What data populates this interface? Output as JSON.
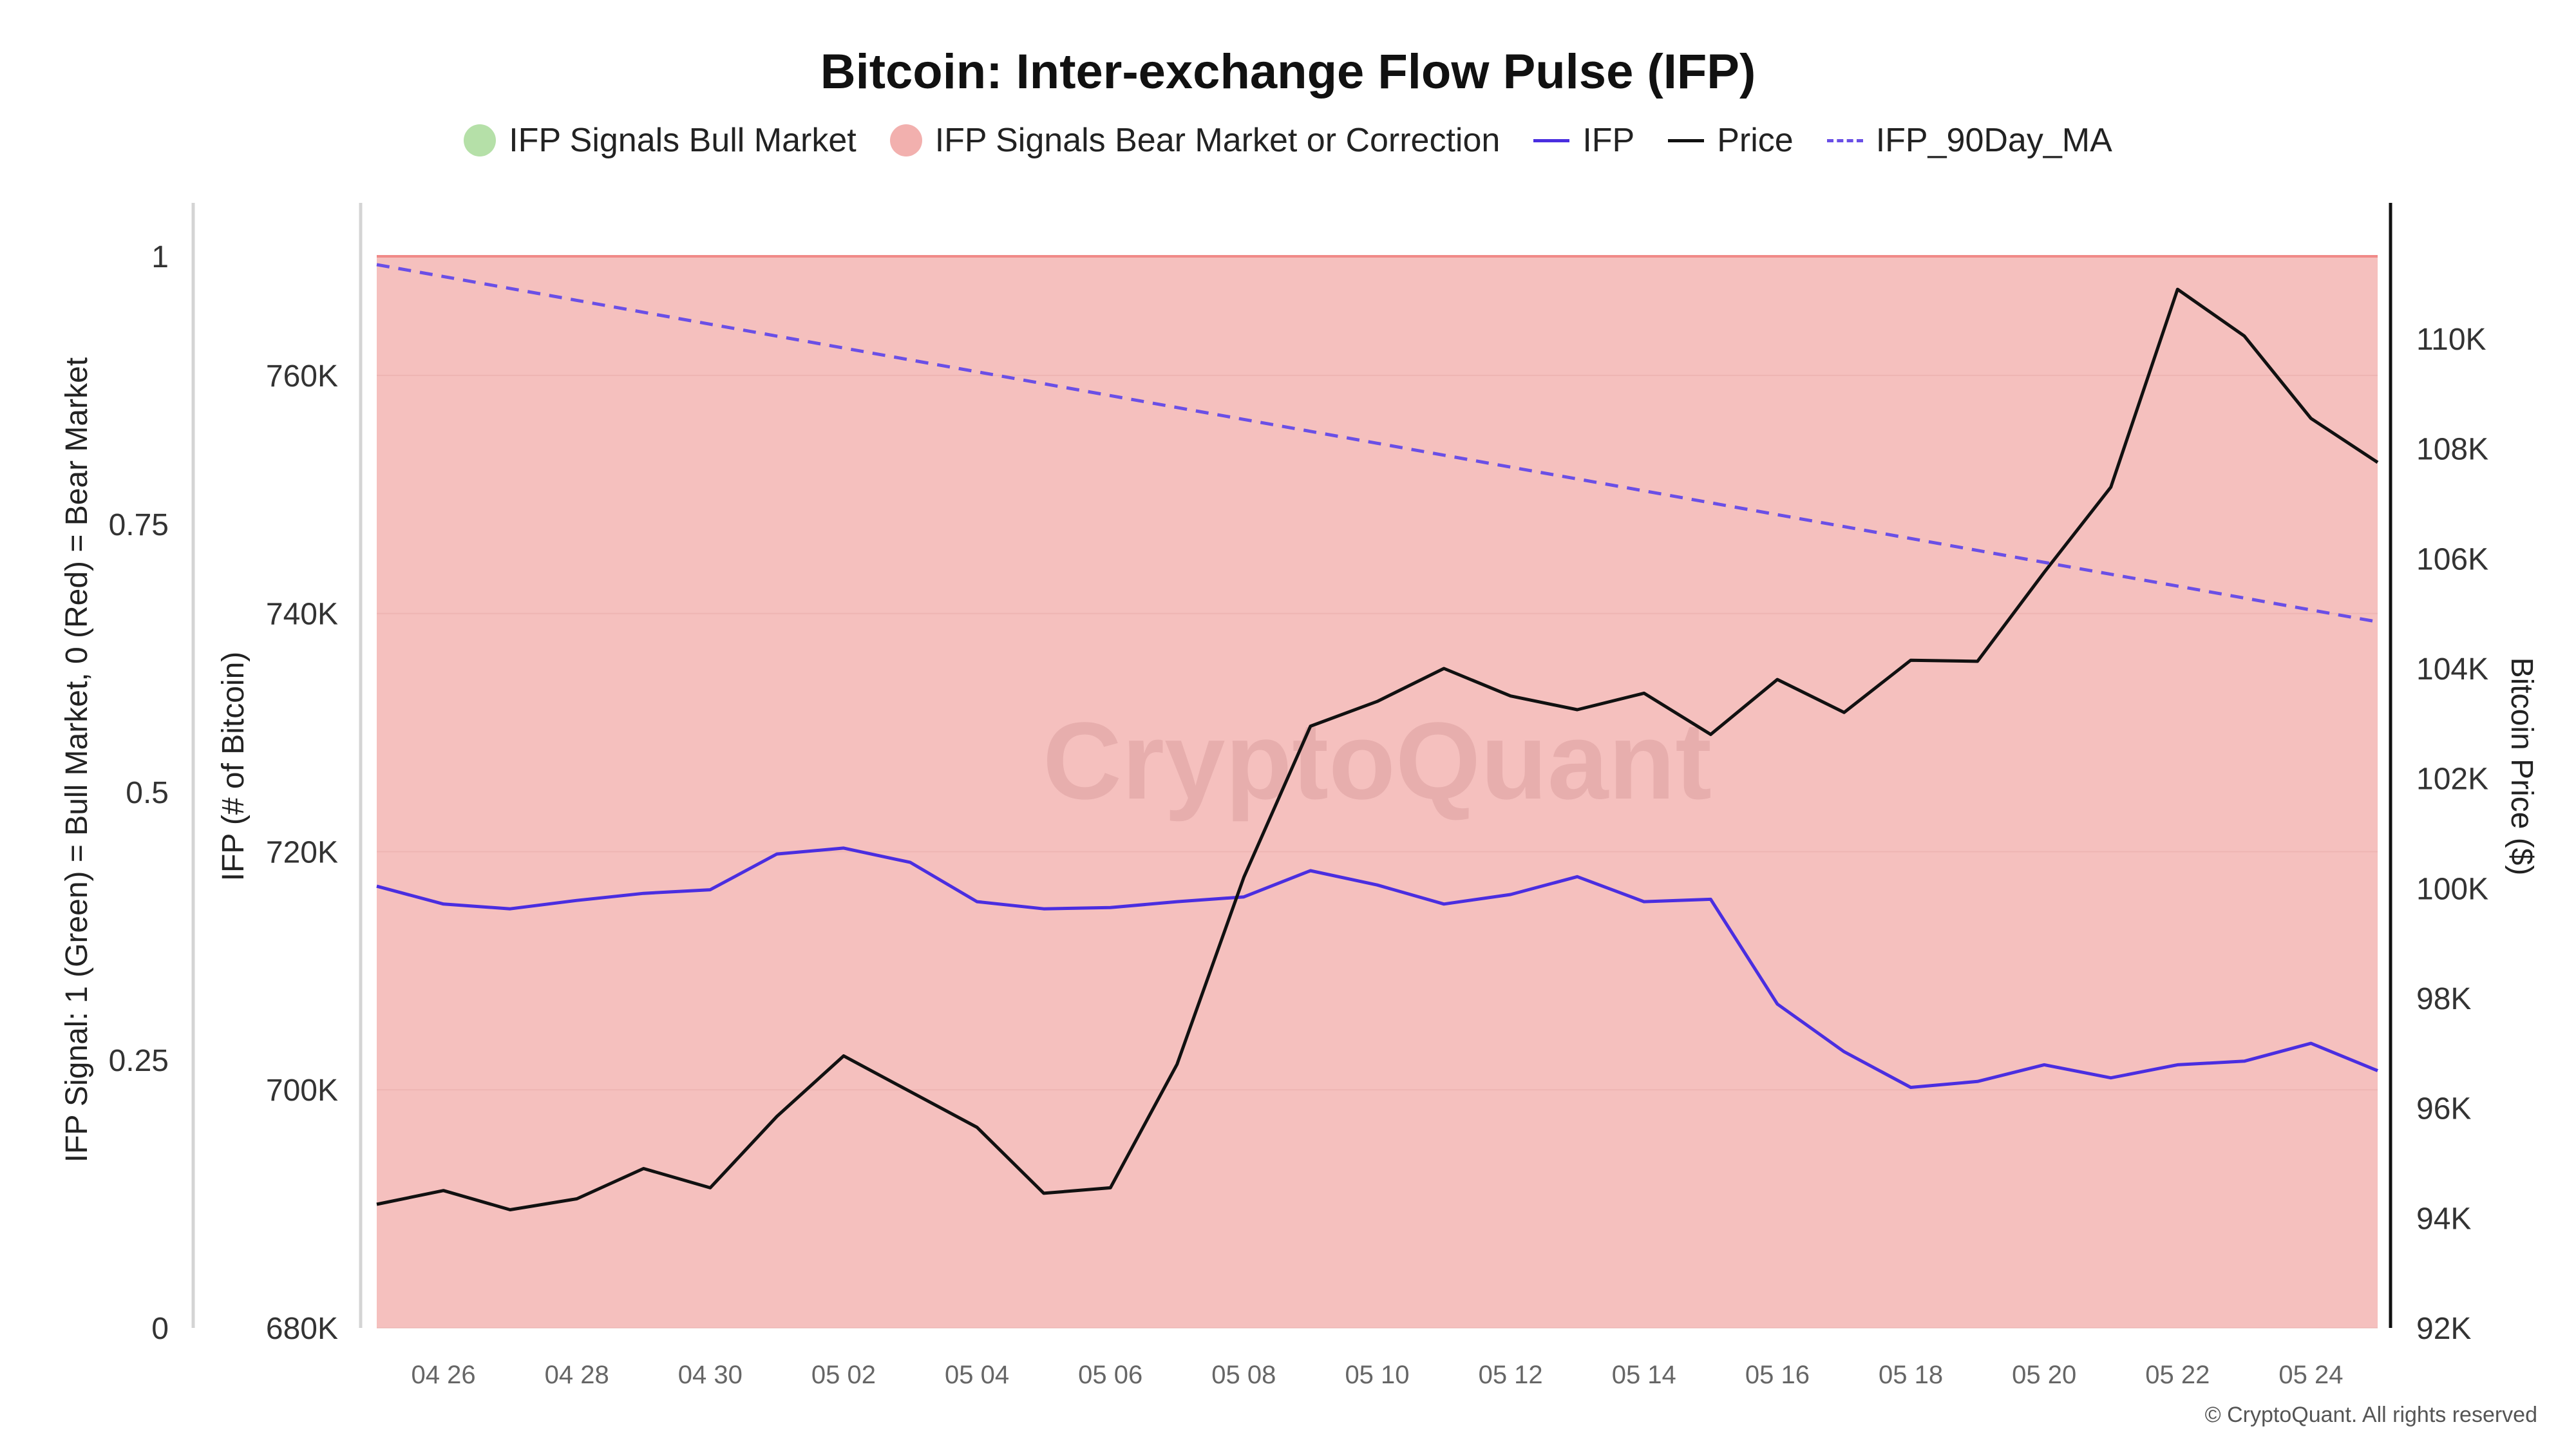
{
  "chart_data": {
    "type": "line",
    "title": "Bitcoin: Inter-exchange Flow Pulse (IFP)",
    "x": [
      "04 25",
      "04 26",
      "04 27",
      "04 28",
      "04 29",
      "04 30",
      "05 01",
      "05 02",
      "05 03",
      "05 04",
      "05 05",
      "05 06",
      "05 07",
      "05 08",
      "05 09",
      "05 10",
      "05 11",
      "05 12",
      "05 13",
      "05 14",
      "05 15",
      "05 16",
      "05 17",
      "05 18",
      "05 19",
      "05 20",
      "05 21",
      "05 22",
      "05 23",
      "05 24",
      "05 25"
    ],
    "x_tick_labels": [
      "04 26",
      "04 28",
      "04 30",
      "05 02",
      "05 04",
      "05 06",
      "05 08",
      "05 10",
      "05 12",
      "05 14",
      "05 16",
      "05 18",
      "05 20",
      "05 22",
      "05 24"
    ],
    "series": [
      {
        "name": "IFP",
        "axis": "ifp",
        "color": "#4a2ee0",
        "style": "solid",
        "values": [
          717100,
          715600,
          715200,
          715900,
          716500,
          716800,
          719800,
          720300,
          719100,
          715800,
          715200,
          715300,
          715800,
          716200,
          718400,
          717200,
          715600,
          716400,
          717900,
          715800,
          716000,
          707200,
          703200,
          700200,
          700700,
          702100,
          701000,
          702100,
          702400,
          703900,
          701600
        ]
      },
      {
        "name": "Price",
        "axis": "price",
        "color": "#111111",
        "style": "solid",
        "values": [
          94250,
          94500,
          94150,
          94350,
          94900,
          94550,
          95850,
          96950,
          96300,
          95650,
          94450,
          94550,
          96800,
          100200,
          102950,
          103400,
          104000,
          103500,
          103250,
          103550,
          102800,
          103800,
          103200,
          104150,
          104130,
          105750,
          107300,
          110900,
          110050,
          108550,
          107750
        ]
      },
      {
        "name": "IFP_90Day_MA",
        "axis": "ifp",
        "color": "#6a4fe6",
        "style": "dashed",
        "values": [
          769300,
          768300,
          767300,
          766300,
          765300,
          764300,
          763300,
          762300,
          761300,
          760300,
          759300,
          758300,
          757300,
          756300,
          755300,
          754300,
          753300,
          752300,
          751300,
          750300,
          749300,
          748300,
          747300,
          746300,
          745300,
          744300,
          743300,
          742300,
          741300,
          740300,
          739300
        ]
      }
    ],
    "signal": {
      "name": "IFP Signals Bear Market or Correction",
      "value": 0,
      "color": "#f5c0be",
      "edge_color": "#f08a88"
    },
    "legend": [
      {
        "label": "IFP Signals Bull Market",
        "marker": "dot",
        "color": "#b5e0a8"
      },
      {
        "label": "IFP Signals Bear Market or Correction",
        "marker": "dot",
        "color": "#f2b0ae"
      },
      {
        "label": "IFP",
        "marker": "line",
        "color": "#4a2ee0"
      },
      {
        "label": "Price",
        "marker": "line",
        "color": "#111111"
      },
      {
        "label": "IFP_90Day_MA",
        "marker": "dash",
        "color": "#6a4fe6"
      }
    ],
    "axes": {
      "signal": {
        "label": "IFP Signal: 1 (Green) = Bull Market, 0 (Red) = Bear Market",
        "range": [
          0,
          1
        ],
        "tick_values": [
          0,
          0.25,
          0.5,
          0.75,
          1
        ],
        "tick_labels": [
          "0",
          "0.25",
          "0.5",
          "0.75",
          "1"
        ]
      },
      "ifp": {
        "label": "IFP (# of Bitcoin)",
        "range": [
          680000,
          770000
        ],
        "tick_values": [
          680000,
          700000,
          720000,
          740000,
          760000
        ],
        "tick_labels": [
          "680K",
          "700K",
          "720K",
          "740K",
          "760K"
        ]
      },
      "price": {
        "label": "Bitcoin Price ($)",
        "range": [
          92000,
          111500
        ],
        "tick_values": [
          92000,
          94000,
          96000,
          98000,
          100000,
          102000,
          104000,
          106000,
          108000,
          110000
        ],
        "tick_labels": [
          "92K",
          "94K",
          "96K",
          "98K",
          "100K",
          "102K",
          "104K",
          "106K",
          "108K",
          "110K"
        ]
      }
    },
    "grid": true,
    "legend_position": "top-center",
    "watermark": "CryptoQuant"
  },
  "footer": {
    "copyright": "© CryptoQuant. All rights reserved"
  }
}
